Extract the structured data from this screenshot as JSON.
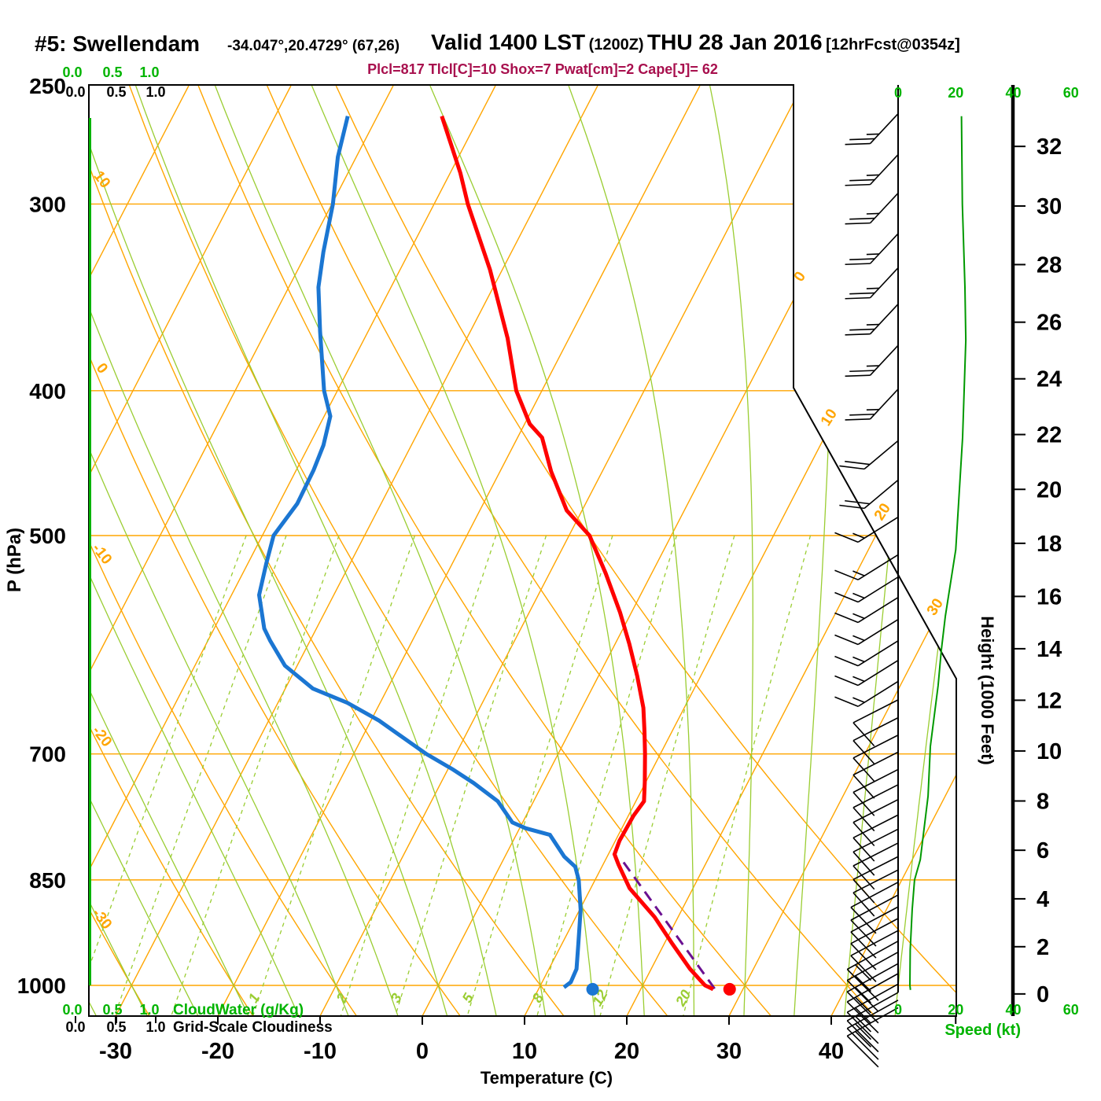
{
  "header": {
    "station": "#5: Swellendam",
    "coords": "-34.047°,20.4729° (67,26)",
    "valid_label": "Valid 1400 LST",
    "valid_zulu": "(1200Z)",
    "valid_date": "THU 28 Jan 2016",
    "forecast_tag": "[12hrFcst@0354z]",
    "params": "Plcl=817 Tlcl[C]=10 Shox=7 Pwat[cm]=2 Cape[J]= 62"
  },
  "axes": {
    "pressure": {
      "label": "P (hPa)",
      "ticks": [
        250,
        300,
        400,
        500,
        700,
        850,
        1000
      ]
    },
    "temperature": {
      "label": "Temperature (C)",
      "ticks": [
        -30,
        -20,
        -10,
        0,
        10,
        20,
        30,
        40
      ]
    },
    "height": {
      "label": "Height (1000 Feet)",
      "ticks": [
        0,
        2,
        4,
        6,
        8,
        10,
        12,
        14,
        16,
        18,
        20,
        22,
        24,
        26,
        28,
        30,
        32
      ]
    },
    "speed": {
      "label": "Speed (kt)",
      "ticks": [
        0,
        20,
        40,
        60
      ]
    },
    "cloudwater": {
      "label": "CloudWater (g/Kg)",
      "ticks": [
        "0.0",
        "0.5",
        "1.0"
      ]
    },
    "cloudiness": {
      "label": "Grid-Scale Cloudiness",
      "ticks": [
        "0.0",
        "0.5",
        "1.0"
      ]
    }
  },
  "background": {
    "isobars": [
      300,
      400,
      500,
      700,
      850,
      1000
    ],
    "isotherms": {
      "start": -100,
      "end": 40,
      "step": 10,
      "labeled": [
        0,
        10,
        20,
        30
      ]
    },
    "dry_adiabats": {
      "start": -70,
      "end": 50,
      "step": 10,
      "labeled": [
        -30,
        -20,
        -10,
        0,
        10
      ]
    },
    "moist_adiabats": {
      "start": -60,
      "end": 45,
      "step": 5
    },
    "mixing_ratio": {
      "values": [
        0.2,
        0.3,
        0.5,
        1,
        2,
        3,
        5,
        8,
        12,
        20
      ],
      "labeled": [
        1,
        2,
        3,
        5,
        8,
        12,
        20
      ]
    }
  },
  "chart_data": {
    "type": "skewt-log-p",
    "pressure_range_hpa": [
      250,
      1000
    ],
    "temperature_axis_c": [
      -40,
      40
    ],
    "series": {
      "temperature_c": [
        [
          262,
          -43.7
        ],
        [
          286,
          -39.0
        ],
        [
          300,
          -36.7
        ],
        [
          332,
          -31.2
        ],
        [
          369,
          -26.0
        ],
        [
          400,
          -22.5
        ],
        [
          421,
          -19.5
        ],
        [
          430,
          -17.6
        ],
        [
          453,
          -15.0
        ],
        [
          481,
          -11.5
        ],
        [
          500,
          -8.0
        ],
        [
          530,
          -4.5
        ],
        [
          563,
          -1.1
        ],
        [
          591,
          1.4
        ],
        [
          621,
          3.8
        ],
        [
          652,
          6.0
        ],
        [
          676,
          7.3
        ],
        [
          700,
          8.5
        ],
        [
          731,
          9.9
        ],
        [
          753,
          10.8
        ],
        [
          770,
          10.5
        ],
        [
          800,
          10.4
        ],
        [
          817,
          10.6
        ],
        [
          830,
          11.5
        ],
        [
          861,
          13.8
        ],
        [
          900,
          17.7
        ],
        [
          938,
          20.8
        ],
        [
          975,
          23.8
        ],
        [
          1000,
          26.1
        ],
        [
          1006,
          27.1
        ]
      ],
      "dewpoint_c": [
        [
          262,
          -52.9
        ],
        [
          279,
          -51.8
        ],
        [
          300,
          -49.9
        ],
        [
          323,
          -48.4
        ],
        [
          341,
          -47.1
        ],
        [
          365,
          -44.7
        ],
        [
          400,
          -41.3
        ],
        [
          416,
          -39.4
        ],
        [
          435,
          -38.6
        ],
        [
          452,
          -38.3
        ],
        [
          476,
          -38.2
        ],
        [
          500,
          -38.9
        ],
        [
          522,
          -38.2
        ],
        [
          548,
          -37.3
        ],
        [
          577,
          -35.1
        ],
        [
          588,
          -33.9
        ],
        [
          611,
          -31.2
        ],
        [
          633,
          -27.3
        ],
        [
          647,
          -23.2
        ],
        [
          665,
          -19.2
        ],
        [
          700,
          -12.9
        ],
        [
          717,
          -9.5
        ],
        [
          732,
          -6.8
        ],
        [
          753,
          -3.5
        ],
        [
          778,
          -1.0
        ],
        [
          785,
          0.6
        ],
        [
          793,
          3.3
        ],
        [
          820,
          5.8
        ],
        [
          833,
          7.4
        ],
        [
          850,
          8.4
        ],
        [
          890,
          10.1
        ],
        [
          938,
          11.6
        ],
        [
          975,
          12.7
        ],
        [
          995,
          12.8
        ],
        [
          1003,
          12.4
        ]
      ],
      "parcel_path_c": [
        [
          1005,
          27.2
        ],
        [
          820,
          11.2
        ]
      ],
      "wind_speed_kt": [
        [
          262,
          22
        ],
        [
          300,
          22.3
        ],
        [
          341,
          23.2
        ],
        [
          370,
          23.5
        ],
        [
          430,
          22.4
        ],
        [
          511,
          20
        ],
        [
          566,
          16.4
        ],
        [
          597,
          15
        ],
        [
          630,
          13.9
        ],
        [
          692,
          11.2
        ],
        [
          747,
          10.4
        ],
        [
          824,
          7.7
        ],
        [
          850,
          5.7
        ],
        [
          890,
          4.9
        ],
        [
          947,
          4.2
        ],
        [
          1000,
          4.1
        ],
        [
          1007,
          4.3
        ]
      ]
    },
    "surface": {
      "pressure_hpa": 1006,
      "temperature_c": 28.7,
      "dewpoint_c": 15.3
    },
    "wind_barbs": [
      {
        "levels": [
          261,
          278,
          295,
          314,
          331,
          350,
          373,
          399
        ],
        "shaft": 133,
        "feather": 178,
        "n": 2.5,
        "len": 52,
        "flen": 32
      },
      {
        "levels": [
          432,
          459
        ],
        "shaft": 140,
        "feather": 187,
        "n": 2,
        "len": 56,
        "flen": 32
      },
      {
        "levels": [
          486,
          515,
          533,
          550,
          569,
          588,
          606,
          626
        ],
        "shaft": 148,
        "feather": 202,
        "n": 1.5,
        "len": 60,
        "flen": 32
      },
      {
        "levels": [
          644,
          662,
          680,
          698,
          717,
          734,
          751,
          769,
          786,
          803,
          820,
          837
        ],
        "shaft": 153,
        "feather": 48,
        "n": 1,
        "len": 64,
        "flen": 40
      },
      {
        "levels": [
          853,
          870,
          886,
          902,
          919
        ],
        "shaft": 152,
        "feather": 46,
        "n": 1,
        "len": 68,
        "flen": 46
      },
      {
        "levels": [
          934,
          950,
          967,
          982,
          998,
          1011,
          1023,
          1035
        ],
        "shaft": 151,
        "feather": 45,
        "n": 1.5,
        "len": 74,
        "flen": 56
      }
    ],
    "cloudwater_profile_value": 0.0
  },
  "colors": {
    "orange": "#FFA500",
    "bg_green": "#9ACD32",
    "text_green": "#00B400",
    "profile_green": "#009900",
    "temperature_red": "#FF0000",
    "dewpoint_blue": "#1B76D2",
    "parcel_purple": "#6B1191",
    "params_maroon": "#A8104E",
    "black": "#000000"
  }
}
